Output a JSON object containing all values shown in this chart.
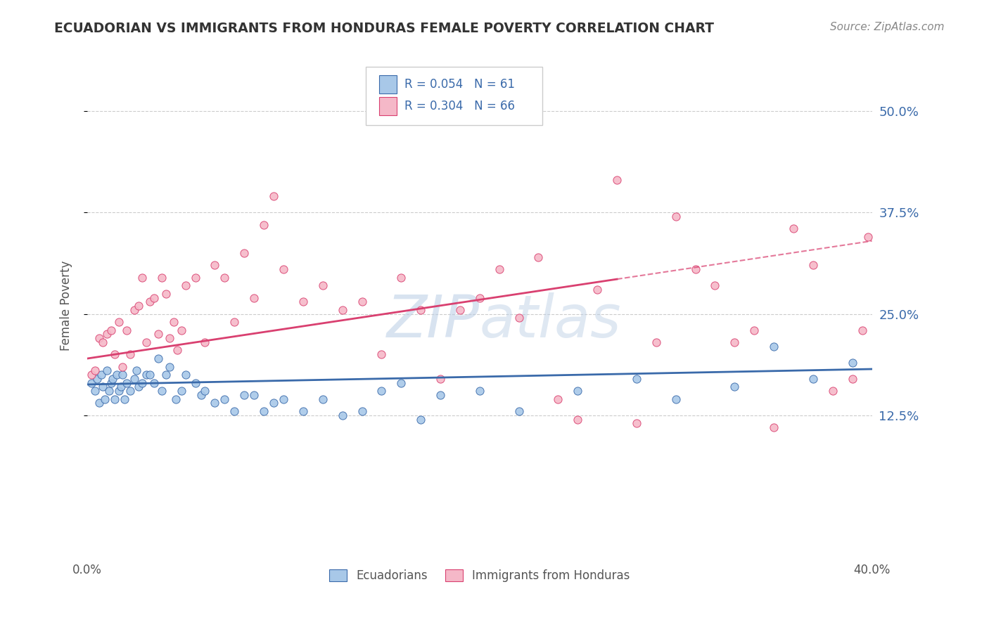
{
  "title": "ECUADORIAN VS IMMIGRANTS FROM HONDURAS FEMALE POVERTY CORRELATION CHART",
  "source": "Source: ZipAtlas.com",
  "ylabel": "Female Poverty",
  "y_ticks": [
    "12.5%",
    "25.0%",
    "37.5%",
    "50.0%"
  ],
  "y_tick_vals": [
    0.125,
    0.25,
    0.375,
    0.5
  ],
  "x_range": [
    0.0,
    0.4
  ],
  "y_range": [
    -0.05,
    0.57
  ],
  "legend_label1": "Ecuadorians",
  "legend_label2": "Immigrants from Honduras",
  "R1": "0.054",
  "N1": "61",
  "R2": "0.304",
  "N2": "66",
  "color1": "#a8c8e8",
  "color2": "#f5b8c8",
  "line1_color": "#3a6aaa",
  "line2_color": "#d94070",
  "watermark_color": "#b8cce4",
  "background_color": "#ffffff",
  "scatter1_x": [
    0.002,
    0.004,
    0.005,
    0.006,
    0.007,
    0.008,
    0.009,
    0.01,
    0.011,
    0.012,
    0.013,
    0.014,
    0.015,
    0.016,
    0.017,
    0.018,
    0.019,
    0.02,
    0.022,
    0.024,
    0.025,
    0.026,
    0.028,
    0.03,
    0.032,
    0.034,
    0.036,
    0.038,
    0.04,
    0.042,
    0.045,
    0.048,
    0.05,
    0.055,
    0.058,
    0.06,
    0.065,
    0.07,
    0.075,
    0.08,
    0.085,
    0.09,
    0.095,
    0.1,
    0.11,
    0.12,
    0.13,
    0.14,
    0.15,
    0.16,
    0.17,
    0.18,
    0.2,
    0.22,
    0.25,
    0.28,
    0.3,
    0.33,
    0.35,
    0.37,
    0.39
  ],
  "scatter1_y": [
    0.165,
    0.155,
    0.17,
    0.14,
    0.175,
    0.16,
    0.145,
    0.18,
    0.155,
    0.165,
    0.17,
    0.145,
    0.175,
    0.155,
    0.16,
    0.175,
    0.145,
    0.165,
    0.155,
    0.17,
    0.18,
    0.16,
    0.165,
    0.175,
    0.175,
    0.165,
    0.195,
    0.155,
    0.175,
    0.185,
    0.145,
    0.155,
    0.175,
    0.165,
    0.15,
    0.155,
    0.14,
    0.145,
    0.13,
    0.15,
    0.15,
    0.13,
    0.14,
    0.145,
    0.13,
    0.145,
    0.125,
    0.13,
    0.155,
    0.165,
    0.12,
    0.15,
    0.155,
    0.13,
    0.155,
    0.17,
    0.145,
    0.16,
    0.21,
    0.17,
    0.19
  ],
  "scatter2_x": [
    0.002,
    0.004,
    0.006,
    0.008,
    0.01,
    0.012,
    0.014,
    0.016,
    0.018,
    0.02,
    0.022,
    0.024,
    0.026,
    0.028,
    0.03,
    0.032,
    0.034,
    0.036,
    0.038,
    0.04,
    0.042,
    0.044,
    0.046,
    0.048,
    0.05,
    0.055,
    0.06,
    0.065,
    0.07,
    0.075,
    0.08,
    0.085,
    0.09,
    0.095,
    0.1,
    0.11,
    0.12,
    0.13,
    0.14,
    0.15,
    0.16,
    0.17,
    0.18,
    0.19,
    0.2,
    0.21,
    0.22,
    0.23,
    0.24,
    0.25,
    0.26,
    0.27,
    0.28,
    0.29,
    0.3,
    0.31,
    0.32,
    0.33,
    0.34,
    0.35,
    0.36,
    0.37,
    0.38,
    0.39,
    0.395,
    0.398
  ],
  "scatter2_y": [
    0.175,
    0.18,
    0.22,
    0.215,
    0.225,
    0.23,
    0.2,
    0.24,
    0.185,
    0.23,
    0.2,
    0.255,
    0.26,
    0.295,
    0.215,
    0.265,
    0.27,
    0.225,
    0.295,
    0.275,
    0.22,
    0.24,
    0.205,
    0.23,
    0.285,
    0.295,
    0.215,
    0.31,
    0.295,
    0.24,
    0.325,
    0.27,
    0.36,
    0.395,
    0.305,
    0.265,
    0.285,
    0.255,
    0.265,
    0.2,
    0.295,
    0.255,
    0.17,
    0.255,
    0.27,
    0.305,
    0.245,
    0.32,
    0.145,
    0.12,
    0.28,
    0.415,
    0.115,
    0.215,
    0.37,
    0.305,
    0.285,
    0.215,
    0.23,
    0.11,
    0.355,
    0.31,
    0.155,
    0.17,
    0.23,
    0.345
  ]
}
